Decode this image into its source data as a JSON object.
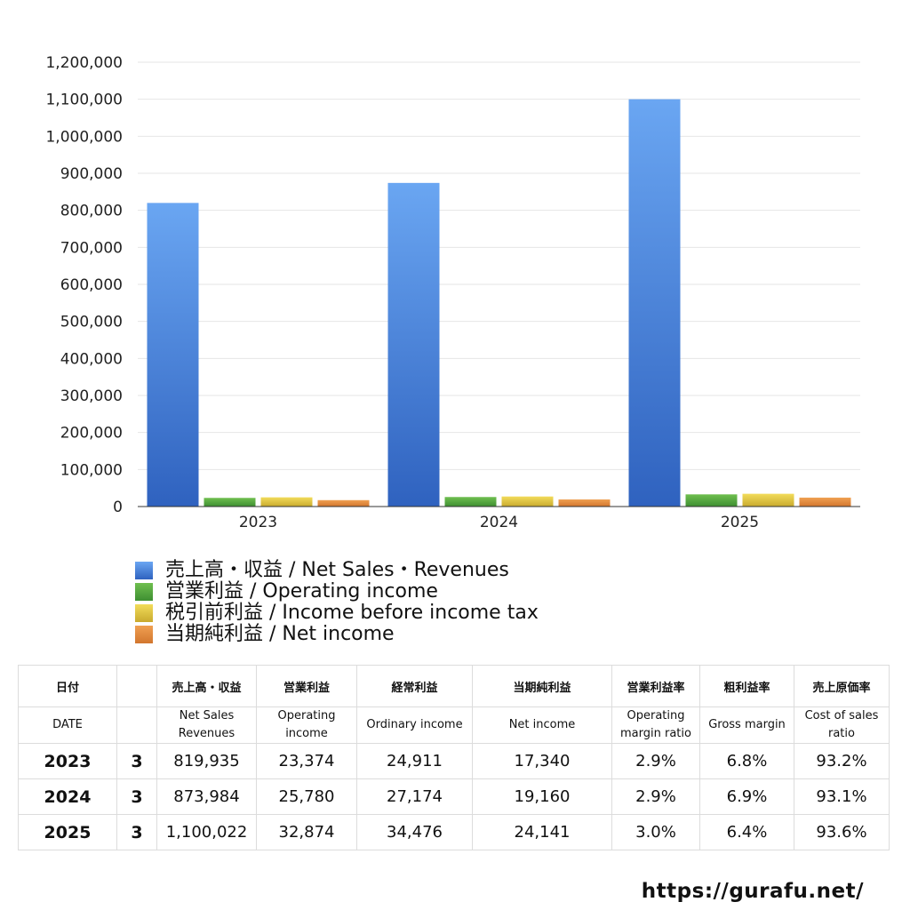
{
  "chart_data": {
    "type": "bar",
    "categories": [
      "2023",
      "2024",
      "2025"
    ],
    "series": [
      {
        "name": "売上高・収益 / Net Sales・Revenues",
        "values": [
          819935,
          873984,
          1100022
        ],
        "color_top": "#6aa6f2",
        "color_bottom": "#2f62bf"
      },
      {
        "name": "営業利益 / Operating income",
        "values": [
          23374,
          25780,
          32874
        ],
        "color_top": "#6fbf4f",
        "color_bottom": "#3e8f32"
      },
      {
        "name": "税引前利益 / Income before income tax",
        "values": [
          24911,
          27174,
          34476
        ],
        "color_top": "#f2dc5a",
        "color_bottom": "#c9aa2e"
      },
      {
        "name": "当期純利益 / Net income",
        "values": [
          17340,
          19160,
          24141
        ],
        "color_top": "#f0a052",
        "color_bottom": "#d2762e"
      }
    ],
    "ylim": [
      0,
      1200000
    ],
    "yticks": [
      "0",
      "100,000",
      "200,000",
      "300,000",
      "400,000",
      "500,000",
      "600,000",
      "700,000",
      "800,000",
      "900,000",
      "1,000,000",
      "1,100,000",
      "1,200,000"
    ],
    "grid": true,
    "legend": "bottom-left"
  },
  "table": {
    "headers_jp": [
      "日付",
      "",
      "売上高・収益",
      "営業利益",
      "経常利益",
      "当期純利益",
      "営業利益率",
      "粗利益率",
      "売上原価率"
    ],
    "headers_en": [
      "DATE",
      "",
      "Net Sales\nRevenues",
      "Operating\nincome",
      "Ordinary income",
      "Net income",
      "Operating\nmargin ratio",
      "Gross margin",
      "Cost of sales\nratio"
    ],
    "rows": [
      [
        "2023",
        "3",
        "819,935",
        "23,374",
        "24,911",
        "17,340",
        "2.9%",
        "6.8%",
        "93.2%"
      ],
      [
        "2024",
        "3",
        "873,984",
        "25,780",
        "27,174",
        "19,160",
        "2.9%",
        "6.9%",
        "93.1%"
      ],
      [
        "2025",
        "3",
        "1,100,022",
        "32,874",
        "34,476",
        "24,141",
        "3.0%",
        "6.4%",
        "93.6%"
      ]
    ]
  },
  "footer": {
    "url": "https://gurafu.net/"
  }
}
